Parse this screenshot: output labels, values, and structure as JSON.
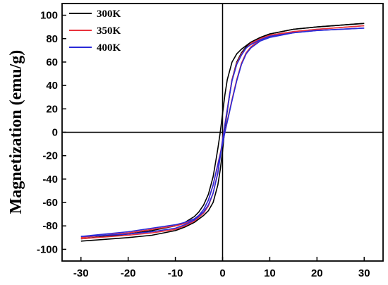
{
  "chart_data": {
    "type": "line",
    "title": "",
    "xlabel": "",
    "ylabel": "Magnetization (emu/g)",
    "xlim": [
      -34,
      34
    ],
    "ylim": [
      -110,
      110
    ],
    "xticks": [
      -30,
      -20,
      -10,
      0,
      10,
      20,
      30
    ],
    "yticks": [
      -100,
      -80,
      -60,
      -40,
      -20,
      0,
      20,
      40,
      60,
      80,
      100
    ],
    "grid": false,
    "legend_position": "top-left",
    "reference_lines": {
      "x": 0,
      "y": 0
    },
    "series": [
      {
        "name": "300K",
        "color": "#000000",
        "upper": {
          "x": [
            -30,
            -20,
            -15,
            -10,
            -8,
            -6,
            -5,
            -4,
            -3,
            -2,
            -1.5,
            -1,
            -0.5,
            0,
            0.5,
            1,
            2,
            3,
            4,
            6,
            8,
            10,
            15,
            20,
            30
          ],
          "y": [
            -91,
            -87,
            -84,
            -80,
            -77,
            -72,
            -68,
            -62,
            -53,
            -38,
            -26,
            -14,
            0,
            16,
            32,
            45,
            60,
            67,
            71,
            77,
            81,
            84,
            88,
            90,
            93
          ]
        },
        "lower": {
          "x": [
            30,
            20,
            15,
            10,
            8,
            6,
            5,
            4,
            3,
            2,
            1.5,
            1,
            0.5,
            0,
            -0.5,
            -1,
            -2,
            -3,
            -4,
            -6,
            -8,
            -10,
            -15,
            -20,
            -30
          ],
          "y": [
            93,
            90,
            88,
            84,
            81,
            77,
            73,
            68,
            60,
            45,
            32,
            18,
            4,
            -16,
            -32,
            -45,
            -60,
            -67,
            -71,
            -77,
            -81,
            -84,
            -88,
            -90,
            -93
          ]
        }
      },
      {
        "name": "350K",
        "color": "#e8323c",
        "upper": {
          "x": [
            -30,
            -20,
            -15,
            -10,
            -8,
            -6,
            -5,
            -4,
            -3,
            -2,
            -1.5,
            -1,
            -0.5,
            0,
            0.5,
            1,
            2,
            3,
            4,
            5,
            6,
            8,
            10,
            15,
            20,
            30
          ],
          "y": [
            -90,
            -86,
            -83,
            -80,
            -78,
            -74,
            -71,
            -66,
            -58,
            -45,
            -36,
            -27,
            -18,
            -9,
            0,
            10,
            28,
            45,
            59,
            68,
            73,
            79,
            82,
            86,
            88,
            91
          ]
        },
        "lower": {
          "x": [
            30,
            20,
            15,
            10,
            8,
            6,
            5,
            4,
            3,
            2,
            1.5,
            1,
            0.5,
            0,
            -0.5,
            -1,
            -2,
            -3,
            -4,
            -6,
            -8,
            -10,
            -15,
            -20,
            -30
          ],
          "y": [
            91,
            88,
            86,
            83,
            80,
            76,
            72,
            67,
            59,
            45,
            33,
            20,
            7,
            -6,
            -20,
            -34,
            -52,
            -63,
            -69,
            -76,
            -80,
            -83,
            -86,
            -88,
            -91
          ]
        }
      },
      {
        "name": "400K",
        "color": "#2a2ad8",
        "upper": {
          "x": [
            -30,
            -20,
            -15,
            -10,
            -8,
            -6,
            -5,
            -4,
            -3,
            -2,
            -1.5,
            -1,
            -0.5,
            0,
            0.5,
            1,
            2,
            3,
            4,
            5,
            6,
            8,
            10,
            15,
            20,
            30
          ],
          "y": [
            -89,
            -85,
            -82,
            -79,
            -77,
            -74,
            -71,
            -66,
            -58,
            -45,
            -36,
            -28,
            -19,
            -10,
            0,
            9,
            27,
            44,
            58,
            67,
            72,
            78,
            81,
            85,
            87,
            89
          ]
        },
        "lower": {
          "x": [
            30,
            20,
            15,
            10,
            8,
            6,
            5,
            4,
            3,
            2,
            1.5,
            1,
            0.5,
            0,
            -0.5,
            -1,
            -2,
            -3,
            -4,
            -6,
            -8,
            -10,
            -15,
            -20,
            -30
          ],
          "y": [
            89,
            87,
            85,
            82,
            79,
            75,
            72,
            66,
            58,
            44,
            32,
            19,
            6,
            -7,
            -21,
            -35,
            -52,
            -62,
            -68,
            -75,
            -79,
            -82,
            -85,
            -87,
            -89
          ]
        }
      }
    ]
  }
}
